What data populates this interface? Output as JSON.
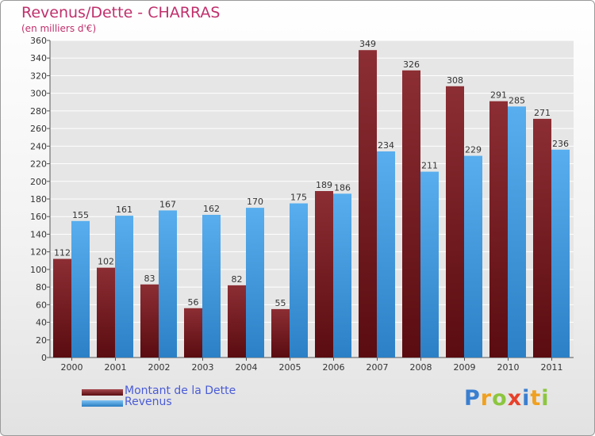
{
  "header": {
    "title": "Revenus/Dette - CHARRAS",
    "subtitle": "(en milliers d'€)"
  },
  "legend": [
    {
      "label": "Montant de la Dette",
      "color": "#6e1a1e"
    },
    {
      "label": "Revenus",
      "color": "#3d96db"
    }
  ],
  "brand": {
    "logo_text": "Proxiti",
    "letters": [
      "P",
      "r",
      "o",
      "x",
      "i",
      "t",
      "i"
    ]
  },
  "chart_data": {
    "type": "bar",
    "title": "Revenus/Dette - CHARRAS",
    "subtitle": "(en milliers d'€)",
    "categories": [
      "2000",
      "2001",
      "2002",
      "2003",
      "2004",
      "2005",
      "2006",
      "2007",
      "2008",
      "2009",
      "2010",
      "2011"
    ],
    "series": [
      {
        "name": "Montant de la Dette",
        "color": "#7a2228",
        "values": [
          112,
          102,
          83,
          56,
          82,
          55,
          189,
          349,
          326,
          308,
          291,
          271
        ]
      },
      {
        "name": "Revenus",
        "color": "#4aa3e6",
        "values": [
          155,
          161,
          167,
          162,
          170,
          175,
          186,
          234,
          211,
          229,
          285,
          236
        ]
      }
    ],
    "ylim": [
      0,
      360
    ],
    "yticks": [
      0,
      20,
      40,
      60,
      80,
      100,
      120,
      140,
      160,
      180,
      200,
      220,
      240,
      260,
      280,
      300,
      320,
      340,
      360
    ],
    "grid": true,
    "legend_position": "bottom-left"
  }
}
